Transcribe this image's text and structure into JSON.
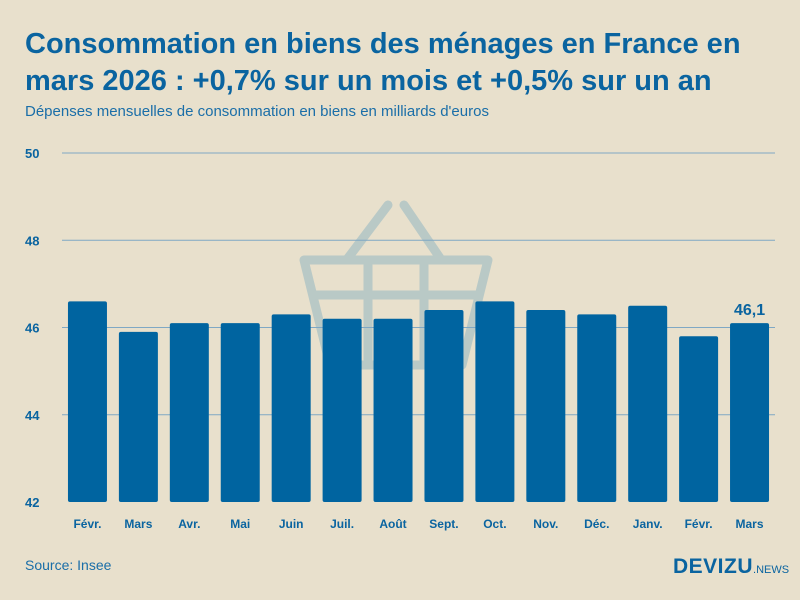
{
  "title": "Consommation en biens des ménages en France en mars 2026 : +0,7% sur un mois et +0,5% sur un an",
  "subtitle": "Dépenses mensuelles de consommation en biens en milliards d'euros",
  "source": "Source: Insee",
  "logo": {
    "main": "DEVIZU",
    "sub": ".NEWS"
  },
  "colors": {
    "bar": "#0064a0",
    "grid": "#7fa8c4",
    "text": "#0a64a0",
    "background": "#e8e0cc",
    "watermark": "#b9c9c6"
  },
  "watermark_icon": "shopping-basket-icon",
  "chart_data": {
    "type": "bar",
    "title": "",
    "xlabel": "",
    "ylabel": "",
    "categories": [
      "Févr.",
      "Mars",
      "Avr.",
      "Mai",
      "Juin",
      "Juil.",
      "Août",
      "Sept.",
      "Oct.",
      "Nov.",
      "Déc.",
      "Janv.",
      "Févr.",
      "Mars"
    ],
    "values": [
      46.6,
      45.9,
      46.1,
      46.1,
      46.3,
      46.2,
      46.2,
      46.4,
      46.6,
      46.4,
      46.3,
      46.5,
      45.8,
      46.1
    ],
    "ylim": [
      42,
      50
    ],
    "yticks": [
      "42",
      "44",
      "46",
      "48",
      "50"
    ],
    "grid": true,
    "data_labels": [
      {
        "index": 13,
        "text": "46,1"
      }
    ]
  }
}
